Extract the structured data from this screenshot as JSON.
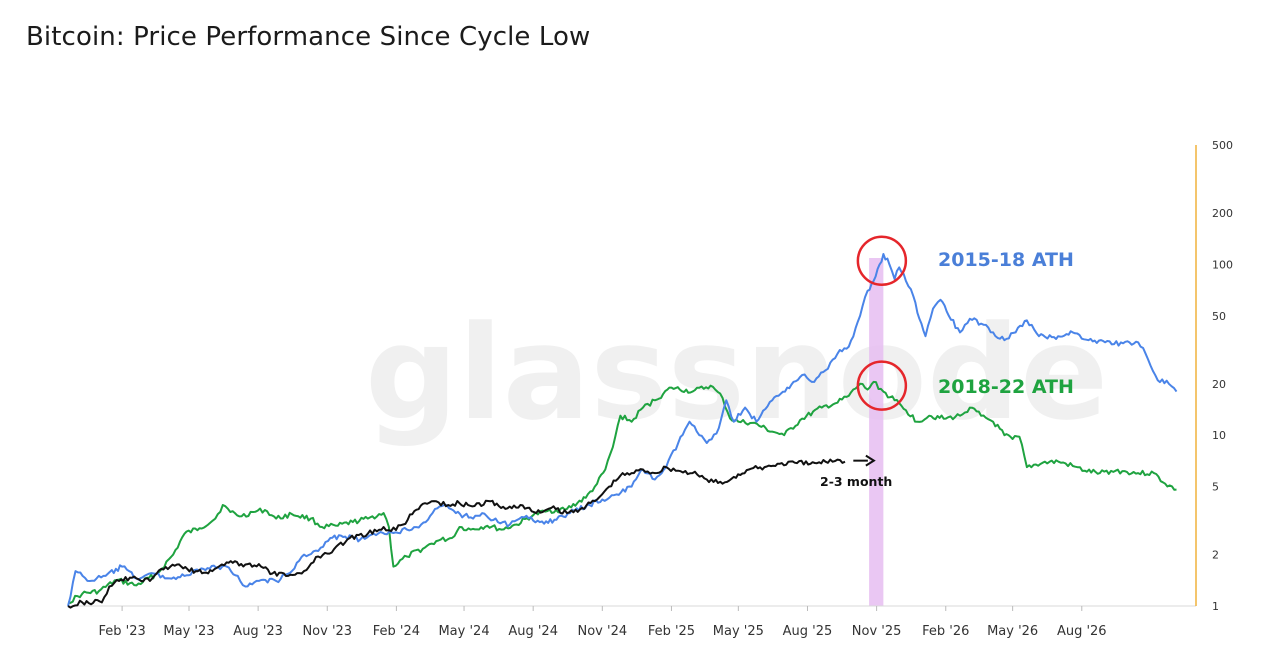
{
  "chart_data": {
    "type": "line",
    "title": "Bitcoin: Price Performance Since Cycle Low",
    "watermark": "glassnode",
    "y_scale": "log",
    "ylim": [
      1,
      500
    ],
    "y_ticks": [
      {
        "value": 1,
        "label": "1"
      },
      {
        "value": 2,
        "label": "2"
      },
      {
        "value": 5,
        "label": "5"
      },
      {
        "value": 10,
        "label": "10"
      },
      {
        "value": 20,
        "label": "20"
      },
      {
        "value": 50,
        "label": "50"
      },
      {
        "value": 100,
        "label": "100"
      },
      {
        "value": 200,
        "label": "200"
      },
      {
        "value": 500,
        "label": "500"
      }
    ],
    "xlim": [
      "2022-11-21",
      "2026-12-31"
    ],
    "x_ticks": [
      {
        "date": "2023-02-01",
        "label": "Feb '23"
      },
      {
        "date": "2023-05-01",
        "label": "May '23"
      },
      {
        "date": "2023-08-01",
        "label": "Aug '23"
      },
      {
        "date": "2023-11-01",
        "label": "Nov '23"
      },
      {
        "date": "2024-02-01",
        "label": "Feb '24"
      },
      {
        "date": "2024-05-01",
        "label": "May '24"
      },
      {
        "date": "2024-08-01",
        "label": "Aug '24"
      },
      {
        "date": "2024-11-01",
        "label": "Nov '24"
      },
      {
        "date": "2025-02-01",
        "label": "Feb '25"
      },
      {
        "date": "2025-05-01",
        "label": "May '25"
      },
      {
        "date": "2025-08-01",
        "label": "Aug '25"
      },
      {
        "date": "2025-11-01",
        "label": "Nov '25"
      },
      {
        "date": "2026-02-01",
        "label": "Feb '26"
      },
      {
        "date": "2026-05-01",
        "label": "May '26"
      },
      {
        "date": "2026-08-01",
        "label": "Aug '26"
      }
    ],
    "series": [
      {
        "name": "",
        "color": "#1fa340",
        "points": [
          [
            "2022-11-21",
            1.05
          ],
          [
            "2022-12-10",
            1.18
          ],
          [
            "2023-01-01",
            1.22
          ],
          [
            "2023-01-25",
            1.42
          ],
          [
            "2023-02-20",
            1.32
          ],
          [
            "2023-03-20",
            1.55
          ],
          [
            "2023-04-10",
            2.0
          ],
          [
            "2023-04-25",
            2.65
          ],
          [
            "2023-05-15",
            2.85
          ],
          [
            "2023-06-05",
            3.25
          ],
          [
            "2023-06-15",
            3.9
          ],
          [
            "2023-06-25",
            3.55
          ],
          [
            "2023-07-10",
            3.35
          ],
          [
            "2023-07-25",
            3.55
          ],
          [
            "2023-08-10",
            3.65
          ],
          [
            "2023-08-25",
            3.25
          ],
          [
            "2023-09-15",
            3.45
          ],
          [
            "2023-10-10",
            3.25
          ],
          [
            "2023-10-25",
            2.9
          ],
          [
            "2023-11-15",
            2.95
          ],
          [
            "2023-12-05",
            3.1
          ],
          [
            "2023-12-25",
            3.25
          ],
          [
            "2024-01-15",
            3.5
          ],
          [
            "2024-01-22",
            2.9
          ],
          [
            "2024-01-28",
            1.7
          ],
          [
            "2024-02-15",
            1.95
          ],
          [
            "2024-03-10",
            2.2
          ],
          [
            "2024-03-25",
            2.4
          ],
          [
            "2024-04-15",
            2.5
          ],
          [
            "2024-04-25",
            2.9
          ],
          [
            "2024-05-10",
            2.8
          ],
          [
            "2024-06-01",
            2.95
          ],
          [
            "2024-06-20",
            2.8
          ],
          [
            "2024-07-10",
            3.0
          ],
          [
            "2024-08-01",
            3.4
          ],
          [
            "2024-08-20",
            3.6
          ],
          [
            "2024-09-15",
            3.7
          ],
          [
            "2024-10-10",
            4.3
          ],
          [
            "2024-10-25",
            5.2
          ],
          [
            "2024-11-05",
            6.3
          ],
          [
            "2024-11-15",
            8.5
          ],
          [
            "2024-11-25",
            13.0
          ],
          [
            "2024-12-10",
            12.0
          ],
          [
            "2024-12-25",
            14.5
          ],
          [
            "2025-01-10",
            16.0
          ],
          [
            "2025-02-01",
            19.0
          ],
          [
            "2025-03-01",
            18.0
          ],
          [
            "2025-03-25",
            19.5
          ],
          [
            "2025-04-10",
            16.5
          ],
          [
            "2025-04-20",
            12.5
          ],
          [
            "2025-05-01",
            12.0
          ],
          [
            "2025-05-20",
            11.8
          ],
          [
            "2025-06-15",
            10.5
          ],
          [
            "2025-07-01",
            10.0
          ],
          [
            "2025-07-25",
            12.5
          ],
          [
            "2025-08-20",
            14.5
          ],
          [
            "2025-09-10",
            15.5
          ],
          [
            "2025-09-25",
            17.0
          ],
          [
            "2025-10-10",
            20.0
          ],
          [
            "2025-10-20",
            18.5
          ],
          [
            "2025-10-28",
            20.5
          ],
          [
            "2025-11-10",
            18.0
          ],
          [
            "2025-11-25",
            16.0
          ],
          [
            "2025-12-10",
            14.0
          ],
          [
            "2025-12-25",
            12.0
          ],
          [
            "2026-01-10",
            13.0
          ],
          [
            "2026-02-01",
            12.5
          ],
          [
            "2026-02-20",
            13.0
          ],
          [
            "2026-03-05",
            14.5
          ],
          [
            "2026-03-20",
            13.0
          ],
          [
            "2026-04-05",
            12.0
          ],
          [
            "2026-04-20",
            10.0
          ],
          [
            "2026-05-01",
            9.5
          ],
          [
            "2026-05-10",
            9.8
          ],
          [
            "2026-05-20",
            6.5
          ],
          [
            "2026-06-10",
            6.9
          ],
          [
            "2026-07-01",
            7.0
          ],
          [
            "2026-07-20",
            6.6
          ],
          [
            "2026-08-05",
            6.2
          ],
          [
            "2026-08-25",
            6.0
          ],
          [
            "2026-09-15",
            6.2
          ],
          [
            "2026-10-15",
            6.0
          ],
          [
            "2026-11-05",
            6.0
          ],
          [
            "2026-11-20",
            5.2
          ],
          [
            "2026-12-05",
            4.8
          ]
        ]
      },
      {
        "name": "",
        "color": "#4a84e8",
        "points": [
          [
            "2022-11-21",
            1.0
          ],
          [
            "2022-12-01",
            1.6
          ],
          [
            "2022-12-20",
            1.4
          ],
          [
            "2023-01-10",
            1.5
          ],
          [
            "2023-02-01",
            1.7
          ],
          [
            "2023-02-20",
            1.45
          ],
          [
            "2023-03-15",
            1.55
          ],
          [
            "2023-04-05",
            1.45
          ],
          [
            "2023-04-25",
            1.5
          ],
          [
            "2023-05-20",
            1.65
          ],
          [
            "2023-06-20",
            1.7
          ],
          [
            "2023-07-05",
            1.5
          ],
          [
            "2023-07-15",
            1.3
          ],
          [
            "2023-08-05",
            1.42
          ],
          [
            "2023-08-25",
            1.4
          ],
          [
            "2023-09-15",
            1.6
          ],
          [
            "2023-10-01",
            2.0
          ],
          [
            "2023-10-20",
            2.1
          ],
          [
            "2023-11-05",
            2.5
          ],
          [
            "2023-11-25",
            2.55
          ],
          [
            "2023-12-15",
            2.45
          ],
          [
            "2024-01-05",
            2.6
          ],
          [
            "2024-01-25",
            2.7
          ],
          [
            "2024-02-15",
            2.8
          ],
          [
            "2024-03-05",
            3.0
          ],
          [
            "2024-03-20",
            3.5
          ],
          [
            "2024-04-05",
            3.9
          ],
          [
            "2024-04-20",
            3.5
          ],
          [
            "2024-05-10",
            3.3
          ],
          [
            "2024-05-25",
            3.5
          ],
          [
            "2024-06-15",
            3.1
          ],
          [
            "2024-07-01",
            3.0
          ],
          [
            "2024-07-20",
            3.3
          ],
          [
            "2024-08-10",
            3.1
          ],
          [
            "2024-09-01",
            3.2
          ],
          [
            "2024-09-25",
            3.6
          ],
          [
            "2024-10-15",
            3.9
          ],
          [
            "2024-11-01",
            4.2
          ],
          [
            "2024-11-20",
            4.5
          ],
          [
            "2024-12-10",
            5.0
          ],
          [
            "2024-12-25",
            6.3
          ],
          [
            "2025-01-10",
            5.5
          ],
          [
            "2025-01-25",
            6.5
          ],
          [
            "2025-02-10",
            9.0
          ],
          [
            "2025-02-25",
            12.0
          ],
          [
            "2025-03-10",
            10.0
          ],
          [
            "2025-03-20",
            9.0
          ],
          [
            "2025-04-05",
            11.0
          ],
          [
            "2025-04-15",
            16.0
          ],
          [
            "2025-04-25",
            12.0
          ],
          [
            "2025-05-10",
            14.5
          ],
          [
            "2025-05-25",
            12.0
          ],
          [
            "2025-06-15",
            16.0
          ],
          [
            "2025-07-05",
            19.0
          ],
          [
            "2025-07-25",
            22.5
          ],
          [
            "2025-08-10",
            20.5
          ],
          [
            "2025-08-25",
            24.0
          ],
          [
            "2025-09-10",
            30.0
          ],
          [
            "2025-09-25",
            33.0
          ],
          [
            "2025-10-10",
            50.0
          ],
          [
            "2025-10-20",
            70.0
          ],
          [
            "2025-10-28",
            80.0
          ],
          [
            "2025-11-05",
            100.0
          ],
          [
            "2025-11-10",
            115.0
          ],
          [
            "2025-11-18",
            100.0
          ],
          [
            "2025-11-25",
            82.0
          ],
          [
            "2025-12-01",
            96.0
          ],
          [
            "2025-12-10",
            80.0
          ],
          [
            "2025-12-20",
            65.0
          ],
          [
            "2025-12-28",
            48.0
          ],
          [
            "2026-01-05",
            38.0
          ],
          [
            "2026-01-15",
            55.0
          ],
          [
            "2026-01-25",
            62.0
          ],
          [
            "2026-02-05",
            50.0
          ],
          [
            "2026-02-20",
            40.0
          ],
          [
            "2026-03-05",
            48.0
          ],
          [
            "2026-03-20",
            45.0
          ],
          [
            "2026-04-05",
            40.0
          ],
          [
            "2026-04-20",
            36.0
          ],
          [
            "2026-05-05",
            40.0
          ],
          [
            "2026-05-20",
            47.0
          ],
          [
            "2026-06-05",
            38.0
          ],
          [
            "2026-06-25",
            37.5
          ],
          [
            "2026-07-20",
            40.0
          ],
          [
            "2026-08-10",
            36.0
          ],
          [
            "2026-09-01",
            35.0
          ],
          [
            "2026-09-25",
            34.5
          ],
          [
            "2026-10-15",
            35.0
          ],
          [
            "2026-10-25",
            30.0
          ],
          [
            "2026-11-10",
            21.0
          ],
          [
            "2026-11-25",
            20.0
          ],
          [
            "2026-12-05",
            18.0
          ]
        ]
      },
      {
        "name": "",
        "color": "#111111",
        "points": [
          [
            "2022-11-21",
            1.0
          ],
          [
            "2022-12-10",
            1.05
          ],
          [
            "2023-01-05",
            1.05
          ],
          [
            "2023-01-15",
            1.3
          ],
          [
            "2023-01-25",
            1.42
          ],
          [
            "2023-02-20",
            1.45
          ],
          [
            "2023-03-10",
            1.4
          ],
          [
            "2023-03-25",
            1.65
          ],
          [
            "2023-04-15",
            1.75
          ],
          [
            "2023-05-10",
            1.6
          ],
          [
            "2023-06-01",
            1.6
          ],
          [
            "2023-06-20",
            1.8
          ],
          [
            "2023-07-15",
            1.75
          ],
          [
            "2023-08-05",
            1.7
          ],
          [
            "2023-08-20",
            1.55
          ],
          [
            "2023-09-10",
            1.5
          ],
          [
            "2023-10-01",
            1.6
          ],
          [
            "2023-10-20",
            1.95
          ],
          [
            "2023-11-10",
            2.15
          ],
          [
            "2023-12-01",
            2.5
          ],
          [
            "2023-12-25",
            2.65
          ],
          [
            "2024-01-15",
            2.9
          ],
          [
            "2024-01-25",
            2.75
          ],
          [
            "2024-02-10",
            3.0
          ],
          [
            "2024-02-25",
            3.6
          ],
          [
            "2024-03-10",
            4.0
          ],
          [
            "2024-03-25",
            4.1
          ],
          [
            "2024-04-10",
            3.9
          ],
          [
            "2024-04-25",
            4.0
          ],
          [
            "2024-05-15",
            3.85
          ],
          [
            "2024-06-05",
            4.1
          ],
          [
            "2024-06-25",
            3.7
          ],
          [
            "2024-07-15",
            3.9
          ],
          [
            "2024-08-05",
            3.5
          ],
          [
            "2024-08-25",
            3.75
          ],
          [
            "2024-09-15",
            3.5
          ],
          [
            "2024-10-05",
            3.75
          ],
          [
            "2024-10-25",
            4.2
          ],
          [
            "2024-11-10",
            5.0
          ],
          [
            "2024-11-25",
            5.8
          ],
          [
            "2024-12-10",
            6.0
          ],
          [
            "2024-12-25",
            6.3
          ],
          [
            "2025-01-10",
            6.0
          ],
          [
            "2025-01-25",
            6.5
          ],
          [
            "2025-02-10",
            6.2
          ],
          [
            "2025-03-01",
            6.0
          ],
          [
            "2025-03-20",
            5.5
          ],
          [
            "2025-04-10",
            5.2
          ],
          [
            "2025-04-25",
            5.7
          ],
          [
            "2025-05-15",
            6.3
          ],
          [
            "2025-06-05",
            6.5
          ],
          [
            "2025-06-25",
            6.8
          ],
          [
            "2025-07-15",
            6.9
          ],
          [
            "2025-08-05",
            6.8
          ],
          [
            "2025-08-25",
            7.0
          ],
          [
            "2025-09-10",
            7.2
          ],
          [
            "2025-09-20",
            7.0
          ]
        ]
      }
    ],
    "highlight_band": {
      "from": "2025-10-22",
      "to": "2025-11-10",
      "color": "#e6bdf1"
    },
    "annotations": [
      {
        "text": "2015-18 ATH",
        "color": "#4a7fd8",
        "circle_at": {
          "x": "2025-11-08",
          "y": 105
        }
      },
      {
        "text": "2018-22 ATH",
        "color": "#1fa340",
        "circle_at": {
          "x": "2025-11-08",
          "y": 19.5
        }
      },
      {
        "text": "2-3 month",
        "color": "#111111",
        "arrow_from": {
          "x": "2025-10-01",
          "y": 7.0
        },
        "arrow_to": {
          "x": "2025-11-08",
          "y": 7.0
        }
      }
    ],
    "right_axis_color": "#f0b23c",
    "grid": false,
    "legend": "none"
  }
}
